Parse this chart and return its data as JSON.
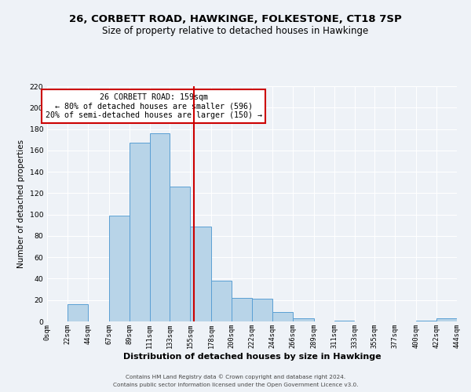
{
  "title": "26, CORBETT ROAD, HAWKINGE, FOLKESTONE, CT18 7SP",
  "subtitle": "Size of property relative to detached houses in Hawkinge",
  "xlabel": "Distribution of detached houses by size in Hawkinge",
  "ylabel": "Number of detached properties",
  "bin_edges": [
    0,
    22,
    44,
    67,
    89,
    111,
    133,
    155,
    178,
    200,
    222,
    244,
    266,
    289,
    311,
    333,
    355,
    377,
    400,
    422,
    444
  ],
  "bar_heights": [
    0,
    16,
    0,
    99,
    167,
    176,
    126,
    89,
    38,
    22,
    21,
    9,
    3,
    0,
    1,
    0,
    0,
    0,
    1,
    3
  ],
  "bar_color": "#b8d4e8",
  "bar_edge_color": "#5a9fd4",
  "vline_x": 159,
  "vline_color": "#cc0000",
  "annotation_text": "26 CORBETT ROAD: 159sqm\n← 80% of detached houses are smaller (596)\n20% of semi-detached houses are larger (150) →",
  "annotation_boxcolor": "white",
  "annotation_boxedge": "#cc0000",
  "ylim": [
    0,
    220
  ],
  "yticks": [
    0,
    20,
    40,
    60,
    80,
    100,
    120,
    140,
    160,
    180,
    200,
    220
  ],
  "xtick_labels": [
    "0sqm",
    "22sqm",
    "44sqm",
    "67sqm",
    "89sqm",
    "111sqm",
    "133sqm",
    "155sqm",
    "178sqm",
    "200sqm",
    "222sqm",
    "244sqm",
    "266sqm",
    "289sqm",
    "311sqm",
    "333sqm",
    "355sqm",
    "377sqm",
    "400sqm",
    "422sqm",
    "444sqm"
  ],
  "footer1": "Contains HM Land Registry data © Crown copyright and database right 2024.",
  "footer2": "Contains public sector information licensed under the Open Government Licence v3.0.",
  "bg_color": "#eef2f7",
  "grid_color": "#ffffff",
  "title_fontsize": 9.5,
  "subtitle_fontsize": 8.5,
  "tick_fontsize": 6.2,
  "xlabel_fontsize": 8,
  "ylabel_fontsize": 7.5,
  "footer_fontsize": 5.2
}
